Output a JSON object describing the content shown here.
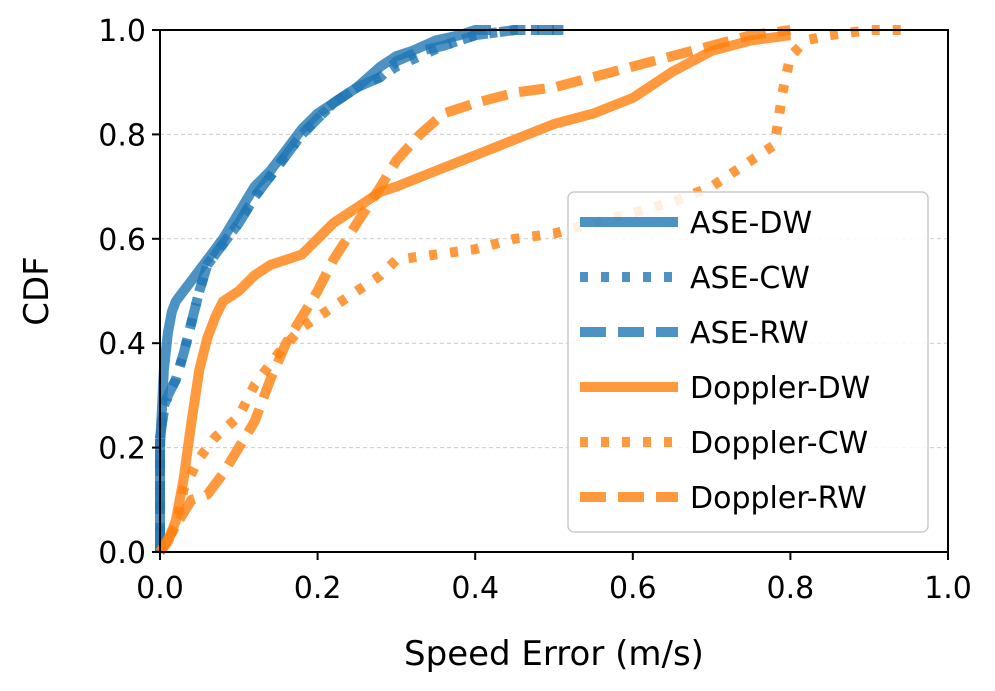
{
  "chart_data": {
    "type": "line",
    "title": "",
    "xlabel": "Speed Error (m/s)",
    "ylabel": "CDF",
    "xlim": [
      0.0,
      1.0
    ],
    "ylim": [
      0.0,
      1.0
    ],
    "xticks": [
      "0.0",
      "0.2",
      "0.4",
      "0.6",
      "0.8",
      "1.0"
    ],
    "yticks": [
      "0.0",
      "0.2",
      "0.4",
      "0.6",
      "0.8",
      "1.0"
    ],
    "grid": "horizontal dashed",
    "legend_position": "lower-right",
    "series": [
      {
        "name": "ASE-DW",
        "color": "#1f77b4",
        "style": "solid",
        "x": [
          0.0,
          0.0,
          0.005,
          0.01,
          0.015,
          0.02,
          0.03,
          0.04,
          0.05,
          0.06,
          0.08,
          0.1,
          0.12,
          0.14,
          0.16,
          0.18,
          0.2,
          0.22,
          0.25,
          0.28,
          0.3,
          0.32,
          0.35,
          0.38,
          0.4,
          0.42
        ],
        "y": [
          0.0,
          0.2,
          0.35,
          0.42,
          0.46,
          0.48,
          0.5,
          0.52,
          0.54,
          0.56,
          0.6,
          0.65,
          0.7,
          0.73,
          0.77,
          0.81,
          0.84,
          0.86,
          0.89,
          0.93,
          0.95,
          0.96,
          0.98,
          0.99,
          1.0,
          1.0
        ]
      },
      {
        "name": "ASE-CW",
        "color": "#1f77b4",
        "style": "dotted",
        "x": [
          0.0,
          0.0,
          0.005,
          0.01,
          0.02,
          0.03,
          0.04,
          0.05,
          0.06,
          0.08,
          0.1,
          0.12,
          0.14,
          0.16,
          0.18,
          0.2,
          0.22,
          0.25,
          0.28,
          0.3,
          0.33,
          0.36,
          0.4,
          0.45,
          0.5
        ],
        "y": [
          0.0,
          0.22,
          0.28,
          0.3,
          0.33,
          0.38,
          0.44,
          0.5,
          0.55,
          0.59,
          0.63,
          0.68,
          0.72,
          0.76,
          0.8,
          0.83,
          0.86,
          0.89,
          0.91,
          0.93,
          0.95,
          0.97,
          0.99,
          1.0,
          1.0
        ]
      },
      {
        "name": "ASE-RW",
        "color": "#1f77b4",
        "style": "dashed",
        "x": [
          0.0,
          0.0,
          0.005,
          0.01,
          0.02,
          0.03,
          0.04,
          0.05,
          0.06,
          0.08,
          0.1,
          0.12,
          0.14,
          0.16,
          0.18,
          0.2,
          0.22,
          0.25,
          0.28,
          0.3,
          0.33,
          0.36,
          0.4,
          0.45,
          0.52
        ],
        "y": [
          0.0,
          0.22,
          0.27,
          0.3,
          0.33,
          0.38,
          0.44,
          0.5,
          0.55,
          0.59,
          0.63,
          0.68,
          0.72,
          0.76,
          0.8,
          0.83,
          0.86,
          0.89,
          0.91,
          0.94,
          0.96,
          0.97,
          0.99,
          1.0,
          1.0
        ]
      },
      {
        "name": "Doppler-DW",
        "color": "#ff7f0e",
        "style": "solid",
        "x": [
          0.0,
          0.01,
          0.02,
          0.03,
          0.04,
          0.05,
          0.06,
          0.07,
          0.08,
          0.1,
          0.12,
          0.14,
          0.16,
          0.18,
          0.2,
          0.22,
          0.25,
          0.28,
          0.3,
          0.35,
          0.4,
          0.45,
          0.5,
          0.55,
          0.6,
          0.65,
          0.7,
          0.75,
          0.8
        ],
        "y": [
          0.0,
          0.02,
          0.06,
          0.14,
          0.25,
          0.35,
          0.41,
          0.45,
          0.48,
          0.5,
          0.53,
          0.55,
          0.56,
          0.57,
          0.6,
          0.63,
          0.66,
          0.69,
          0.7,
          0.73,
          0.76,
          0.79,
          0.82,
          0.84,
          0.87,
          0.92,
          0.96,
          0.98,
          0.99
        ]
      },
      {
        "name": "Doppler-CW",
        "color": "#ff7f0e",
        "style": "dotted",
        "x": [
          0.0,
          0.02,
          0.03,
          0.05,
          0.07,
          0.1,
          0.12,
          0.15,
          0.18,
          0.2,
          0.22,
          0.25,
          0.28,
          0.3,
          0.35,
          0.4,
          0.45,
          0.5,
          0.55,
          0.6,
          0.65,
          0.7,
          0.75,
          0.78,
          0.79,
          0.8,
          0.82,
          0.85,
          0.9,
          0.95
        ],
        "y": [
          0.0,
          0.05,
          0.12,
          0.18,
          0.22,
          0.26,
          0.32,
          0.38,
          0.43,
          0.45,
          0.47,
          0.5,
          0.53,
          0.56,
          0.57,
          0.58,
          0.6,
          0.61,
          0.63,
          0.65,
          0.67,
          0.7,
          0.75,
          0.78,
          0.88,
          0.95,
          0.98,
          0.99,
          1.0,
          1.0
        ]
      },
      {
        "name": "Doppler-RW",
        "color": "#ff7f0e",
        "style": "dashed",
        "x": [
          0.0,
          0.02,
          0.04,
          0.06,
          0.08,
          0.1,
          0.12,
          0.14,
          0.16,
          0.18,
          0.2,
          0.22,
          0.25,
          0.28,
          0.3,
          0.33,
          0.36,
          0.4,
          0.45,
          0.5,
          0.55,
          0.6,
          0.65,
          0.7,
          0.75,
          0.8
        ],
        "y": [
          0.0,
          0.05,
          0.1,
          0.11,
          0.15,
          0.2,
          0.25,
          0.33,
          0.4,
          0.45,
          0.5,
          0.56,
          0.63,
          0.7,
          0.75,
          0.8,
          0.84,
          0.86,
          0.88,
          0.89,
          0.91,
          0.93,
          0.95,
          0.97,
          0.99,
          1.0
        ]
      }
    ]
  }
}
